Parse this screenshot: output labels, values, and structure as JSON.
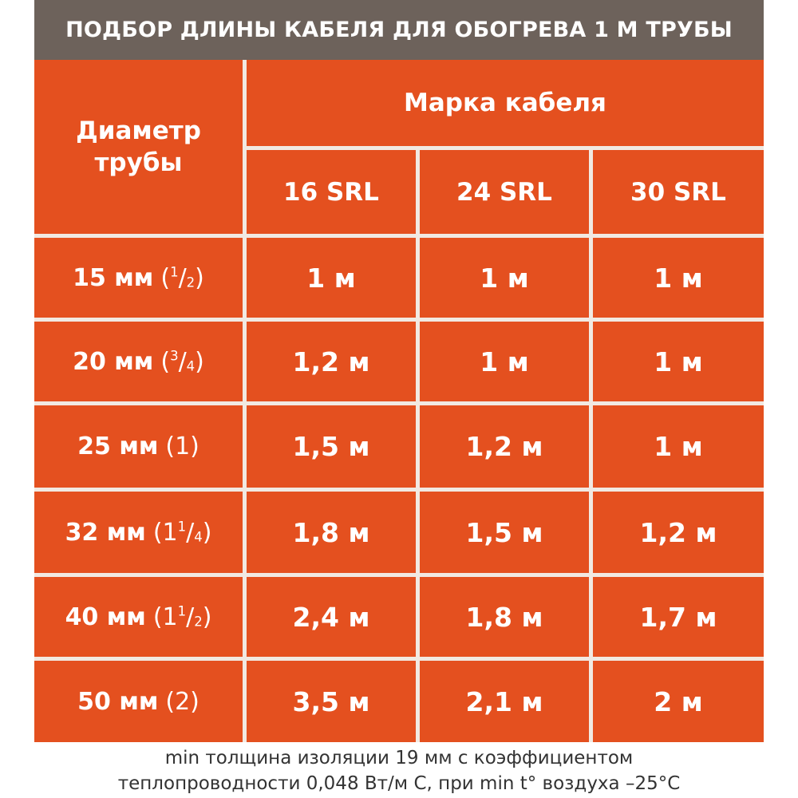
{
  "header": {
    "title": "ПОДБОР ДЛИНЫ КАБЕЛЯ ДЛЯ ОБОГРЕВА 1 М ТРУБЫ"
  },
  "table": {
    "diameter_header": [
      "Диаметр",
      "трубы"
    ],
    "brand_header": "Марка кабеля",
    "brands": [
      "16 SRL",
      "24 SRL",
      "30 SRL"
    ],
    "rows": [
      {
        "diameter": "15 мм",
        "inch": [
          "(",
          "1",
          "/",
          "2",
          ")"
        ],
        "values": [
          "1 м",
          "1 м",
          "1 м"
        ]
      },
      {
        "diameter": "20 мм",
        "inch": [
          "(",
          "3",
          "/",
          "4",
          ")"
        ],
        "values": [
          "1,2 м",
          "1 м",
          "1 м"
        ]
      },
      {
        "diameter": "25 мм",
        "inch": [
          "(1)",
          "",
          "",
          "",
          ""
        ],
        "values": [
          "1,5 м",
          "1,2 м",
          "1 м"
        ]
      },
      {
        "diameter": "32 мм",
        "inch": [
          "(1",
          "1",
          "/",
          "4",
          ")"
        ],
        "values": [
          "1,8 м",
          "1,5 м",
          "1,2 м"
        ]
      },
      {
        "diameter": "40 мм",
        "inch": [
          "(1",
          "1",
          "/",
          "2",
          ")"
        ],
        "values": [
          "2,4 м",
          "1,8 м",
          "1,7 м"
        ]
      },
      {
        "diameter": "50 мм",
        "inch": [
          "(2)",
          "",
          "",
          "",
          ""
        ],
        "values": [
          "3,5 м",
          "2,1 м",
          "2 м"
        ]
      }
    ]
  },
  "footer": {
    "line1": "min толщина изоляции 19 мм с коэффициентом",
    "line2": "теплопроводности 0,048 Вт/м С, при min t° воздуха –25°С"
  },
  "colors": {
    "header_bg": "#6d625b",
    "cell_bg": "#e4501f",
    "grid_line": "#f1e9e2",
    "text": "#ffffff"
  }
}
